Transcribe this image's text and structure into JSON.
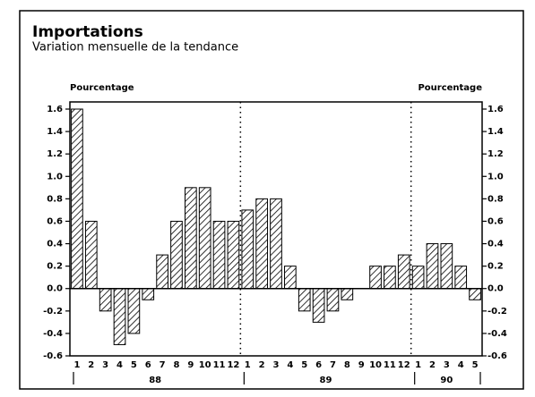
{
  "chart_data": {
    "type": "bar",
    "title": "Importations",
    "subtitle": "Variation mensuelle de la tendance",
    "ylabel": "Pourcentage",
    "y2label": "Pourcentage",
    "categories": [
      "1",
      "2",
      "3",
      "4",
      "5",
      "6",
      "7",
      "8",
      "9",
      "10",
      "11",
      "12",
      "1",
      "2",
      "3",
      "4",
      "5",
      "6",
      "7",
      "8",
      "9",
      "10",
      "11",
      "12",
      "1",
      "2",
      "3",
      "4",
      "5"
    ],
    "groups": [
      "88",
      "89",
      "90"
    ],
    "values": [
      1.6,
      0.6,
      -0.2,
      -0.5,
      -0.4,
      -0.1,
      0.3,
      0.6,
      0.9,
      0.9,
      0.6,
      0.6,
      0.7,
      0.8,
      0.8,
      0.2,
      -0.2,
      -0.3,
      -0.2,
      -0.1,
      0.0,
      0.2,
      0.2,
      0.3,
      0.2,
      0.4,
      0.4,
      0.2,
      -0.1
    ],
    "color": "#000000",
    "ylim": [
      -0.6,
      1.6
    ],
    "yticks": [
      -0.6,
      -0.4,
      -0.2,
      {
        "value": 0,
        "label": "0.0"
      },
      0.2,
      0.4,
      0.6,
      0.8,
      {
        "value": 1,
        "label": "1.0"
      },
      1.2,
      1.4,
      1.6
    ],
    "y2lim": [
      -0.6,
      1.6
    ],
    "y2ticks": [
      -0.6,
      -0.4,
      -0.2,
      {
        "value": 0,
        "label": "0.0"
      },
      0.2,
      0.4,
      0.6,
      0.8,
      {
        "value": 1,
        "label": "1.0"
      },
      1.2,
      1.4,
      1.6
    ]
  }
}
